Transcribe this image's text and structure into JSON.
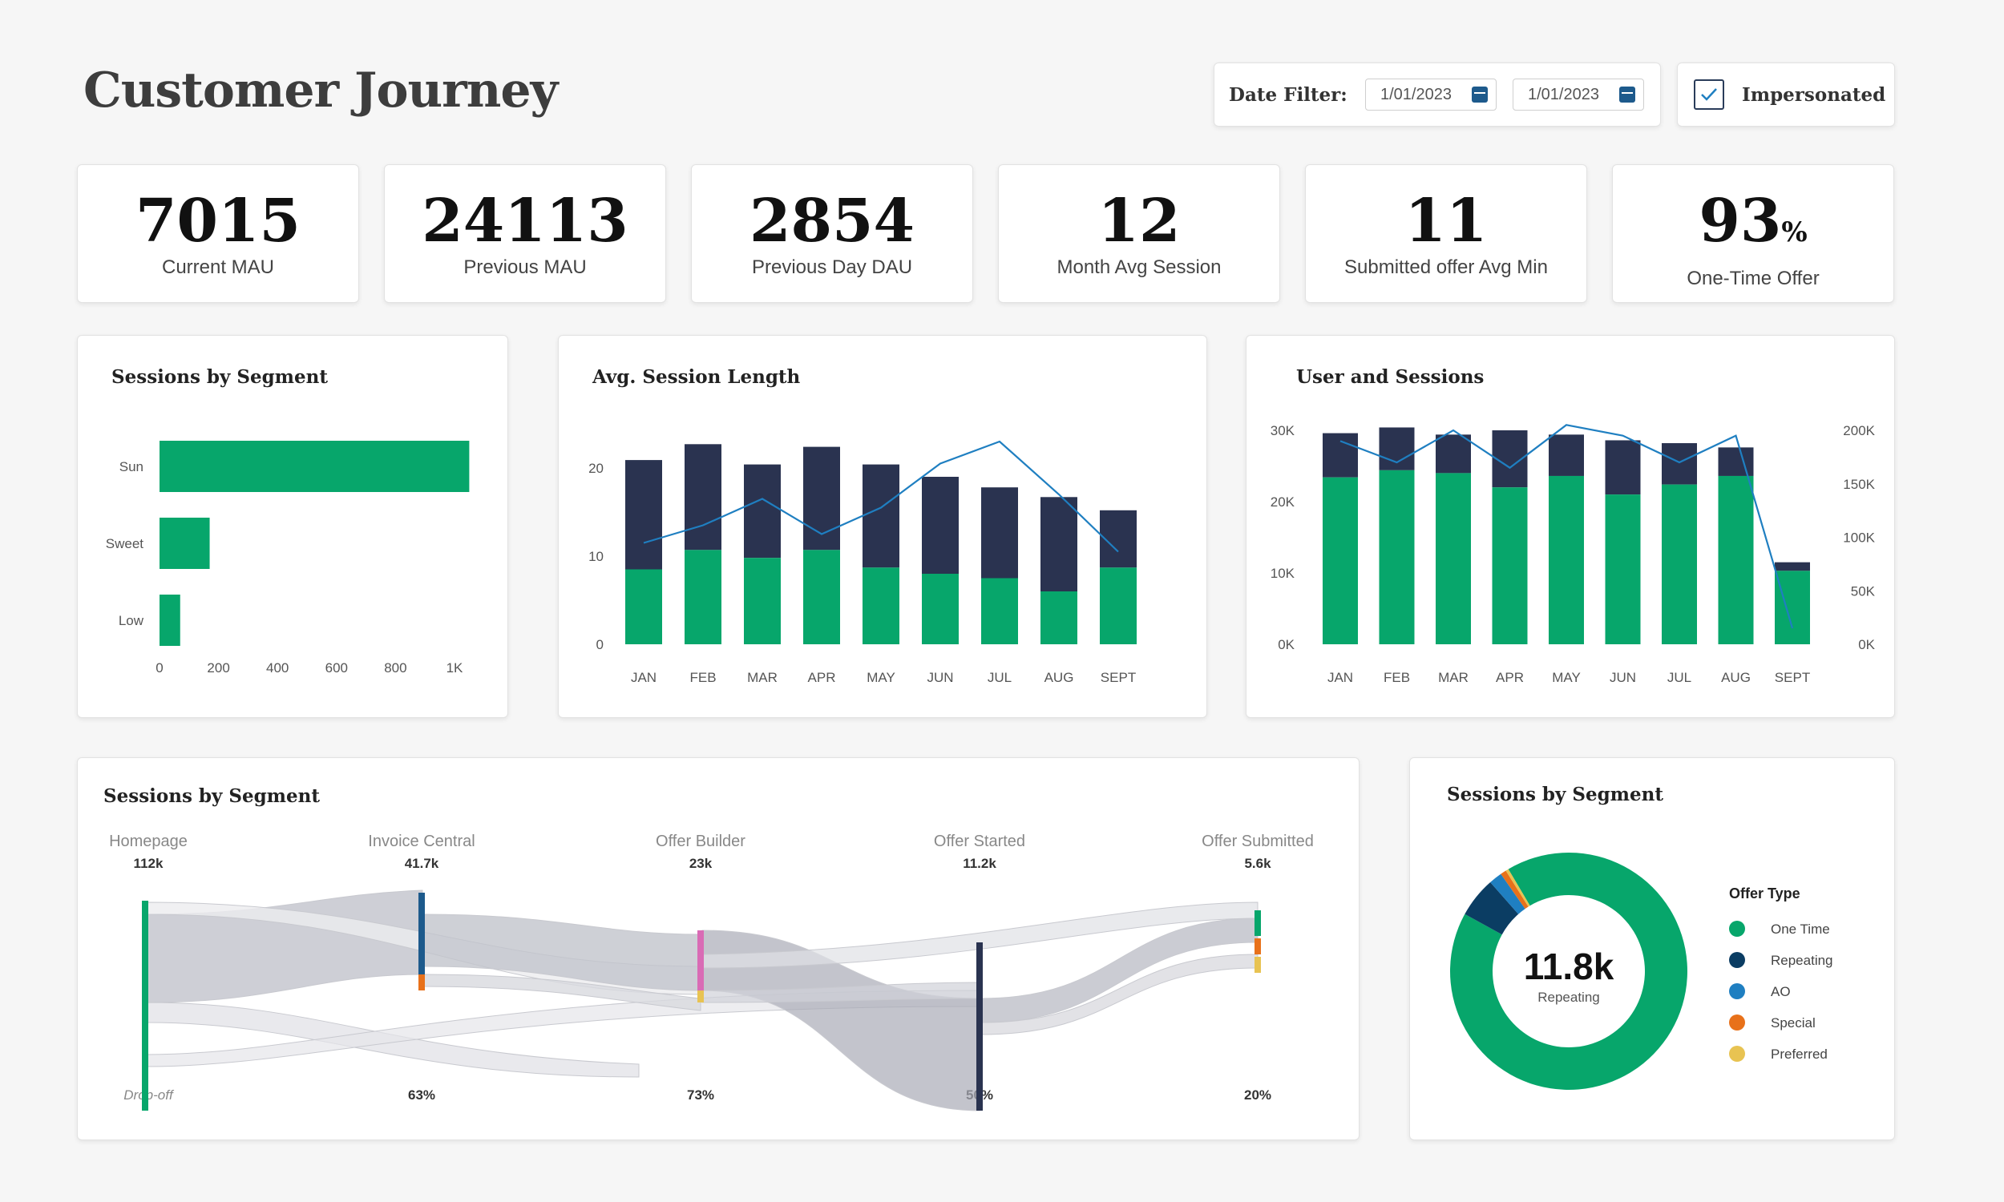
{
  "page_title": "Customer Journey",
  "date_filter": {
    "label": "Date Filter:",
    "start": "1/01/2023",
    "end": "1/01/2023"
  },
  "impersonated": {
    "label": "Impersonated",
    "checked": true
  },
  "kpis": [
    {
      "value": "7015",
      "label": "Current MAU"
    },
    {
      "value": "24113",
      "label": "Previous MAU"
    },
    {
      "value": "2854",
      "label": "Previous Day DAU"
    },
    {
      "value": "12",
      "label": "Month Avg Session"
    },
    {
      "value": "11",
      "label": "Submitted offer Avg Min"
    },
    {
      "value": "93",
      "unit": "%",
      "label": "One-Time Offer"
    }
  ],
  "colors": {
    "green": "#07a66b",
    "navy": "#2a3350",
    "line": "#1f7fc1"
  },
  "chart_data": [
    {
      "type": "bar",
      "title": "Sessions by Segment",
      "orientation": "horizontal",
      "categories": [
        "Sun",
        "Sweet",
        "Low"
      ],
      "values": [
        1050,
        170,
        70
      ],
      "xlim": [
        0,
        1000
      ],
      "x_ticks": [
        "0",
        "200",
        "400",
        "600",
        "800",
        "1K"
      ],
      "grid": false
    },
    {
      "type": "bar",
      "title": "Avg. Session Length",
      "stacked": true,
      "categories": [
        "JAN",
        "FEB",
        "MAR",
        "APR",
        "MAY",
        "JUN",
        "JUL",
        "AUG",
        "SEPT"
      ],
      "series": [
        {
          "values": [
            8.5,
            10.7,
            9.8,
            10.7,
            8.7,
            8.0,
            7.5,
            6.0,
            8.7
          ]
        },
        {
          "values": [
            12.4,
            12.0,
            10.6,
            11.7,
            11.7,
            11.0,
            10.3,
            10.7,
            6.5
          ]
        },
        {
          "type": "line",
          "values": [
            11.5,
            13.5,
            16.5,
            12.5,
            15.5,
            20.5,
            23.0,
            17.0,
            10.5
          ]
        }
      ],
      "ylim": [
        0,
        22
      ],
      "y_ticks": [
        "0",
        "10",
        "20"
      ],
      "grid": false
    },
    {
      "type": "bar",
      "title": "User and Sessions",
      "stacked": true,
      "dual_axis": true,
      "categories": [
        "JAN",
        "FEB",
        "MAR",
        "APR",
        "MAY",
        "JUN",
        "JUL",
        "AUG",
        "SEPT"
      ],
      "series": [
        {
          "values": [
            23400,
            24400,
            24000,
            22000,
            23600,
            21000,
            22400,
            23600,
            10300
          ]
        },
        {
          "values": [
            6200,
            6000,
            5400,
            8000,
            5800,
            7600,
            5800,
            4000,
            1200
          ]
        },
        {
          "type": "line",
          "axis": "right",
          "values": [
            190000,
            170000,
            200000,
            165000,
            205000,
            195000,
            170000,
            195000,
            15000
          ]
        }
      ],
      "ylim": [
        0,
        30000
      ],
      "y_ticks": [
        "0K",
        "10K",
        "20K",
        "30K"
      ],
      "y2lim": [
        0,
        200000
      ],
      "y2_ticks": [
        "0K",
        "50K",
        "100K",
        "150K",
        "200K"
      ],
      "grid": false
    },
    {
      "type": "sankey",
      "title": "Sessions by Segment",
      "stages": [
        {
          "name": "Homepage",
          "value": "112k",
          "dropoff": "Drop-off"
        },
        {
          "name": "Invoice Central",
          "value": "41.7k",
          "dropoff": "63%"
        },
        {
          "name": "Offer Builder",
          "value": "23k",
          "dropoff": "73%"
        },
        {
          "name": "Offer Started",
          "value": "11.2k",
          "dropoff": "50%"
        },
        {
          "name": "Offer Submitted",
          "value": "5.6k",
          "dropoff": "20%"
        }
      ]
    },
    {
      "type": "pie",
      "title": "Sessions by Segment",
      "donut": true,
      "center_value": "11.8k",
      "center_label": "Repeating",
      "legend_title": "Offer Type",
      "legend_position": "right",
      "slices": [
        {
          "label": "One Time",
          "value": 91.5,
          "color": "#07a66b"
        },
        {
          "label": "Repeating",
          "value": 5.5,
          "color": "#0b3d63"
        },
        {
          "label": "AO",
          "value": 1.8,
          "color": "#1f7fc1"
        },
        {
          "label": "Special",
          "value": 0.8,
          "color": "#e8711a"
        },
        {
          "label": "Preferred",
          "value": 0.4,
          "color": "#e8c352"
        }
      ]
    }
  ]
}
